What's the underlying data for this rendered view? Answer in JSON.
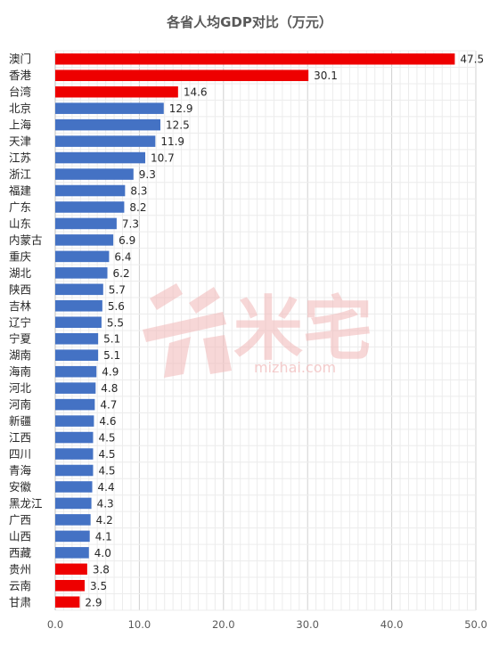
{
  "chart_data": {
    "type": "bar",
    "orientation": "horizontal",
    "title": "各省人均GDP对比（万元）",
    "xlim": [
      0,
      50
    ],
    "xticks": [
      "0.0",
      "10.0",
      "20.0",
      "30.0",
      "40.0",
      "50.0"
    ],
    "grid": true,
    "legend": "none",
    "colors": {
      "highlight": "#ee0000",
      "normal": "#4472c4"
    },
    "categories": [
      "澳门",
      "香港",
      "台湾",
      "北京",
      "上海",
      "天津",
      "江苏",
      "浙江",
      "福建",
      "广东",
      "山东",
      "内蒙古",
      "重庆",
      "湖北",
      "陕西",
      "吉林",
      "辽宁",
      "宁夏",
      "湖南",
      "海南",
      "河北",
      "河南",
      "新疆",
      "江西",
      "四川",
      "青海",
      "安徽",
      "黑龙江",
      "广西",
      "山西",
      "西藏",
      "贵州",
      "云南",
      "甘肃"
    ],
    "values": [
      47.5,
      30.1,
      14.6,
      12.9,
      12.5,
      11.9,
      10.7,
      9.3,
      8.3,
      8.2,
      7.3,
      6.9,
      6.4,
      6.2,
      5.7,
      5.6,
      5.5,
      5.1,
      5.1,
      4.9,
      4.8,
      4.7,
      4.6,
      4.5,
      4.5,
      4.5,
      4.4,
      4.3,
      4.2,
      4.1,
      4.0,
      3.8,
      3.5,
      2.9
    ],
    "value_labels": [
      "47.5",
      "30.1",
      "14.6",
      "12.9",
      "12.5",
      "11.9",
      "10.7",
      "9.3",
      "8.3",
      "8.2",
      "7.3",
      "6.9",
      "6.4",
      "6.2",
      "5.7",
      "5.6",
      "5.5",
      "5.1",
      "5.1",
      "4.9",
      "4.8",
      "4.7",
      "4.6",
      "4.5",
      "4.5",
      "4.5",
      "4.4",
      "4.3",
      "4.2",
      "4.1",
      "4.0",
      "3.8",
      "3.5",
      "2.9"
    ],
    "highlighted": [
      "澳门",
      "香港",
      "台湾",
      "贵州",
      "云南",
      "甘肃"
    ]
  },
  "watermark": {
    "text": "米宅",
    "url": "mizhai.com"
  }
}
